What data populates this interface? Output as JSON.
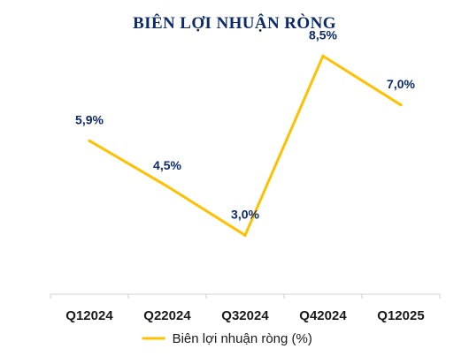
{
  "chart_data": {
    "type": "line",
    "title": "BIÊN LỢI NHUẬN RÒNG",
    "categories": [
      "Q12024",
      "Q22024",
      "Q32024",
      "Q42024",
      "Q12025"
    ],
    "series": [
      {
        "name": "Biên lợi nhuận ròng (%)",
        "values": [
          5.9,
          4.5,
          3.0,
          8.5,
          7.0
        ],
        "labels": [
          "5,9%",
          "4,5%",
          "3,0%",
          "8,5%",
          "7,0%"
        ],
        "color": "#ffc000"
      }
    ],
    "ylim": [
      1.0,
      9.0
    ],
    "grid": false,
    "legend": "bottom"
  },
  "colors": {
    "title": "#0d2a6b",
    "data_label": "#0d2a6b",
    "axis": "#d0d0d0"
  }
}
